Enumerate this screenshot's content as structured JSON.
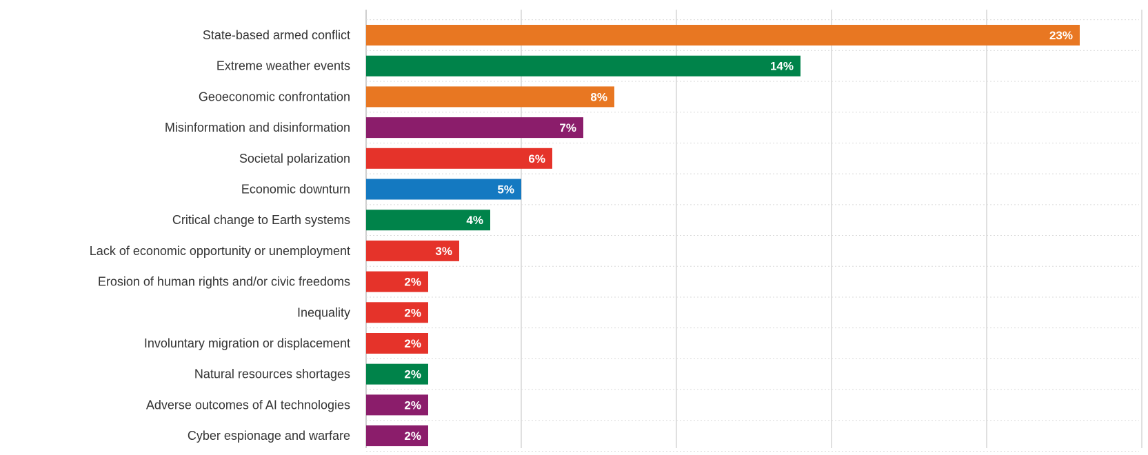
{
  "chart_data": {
    "type": "bar",
    "orientation": "horizontal",
    "categories": [
      "State-based armed conflict",
      "Extreme weather events",
      "Geoeconomic confrontation",
      "Misinformation and disinformation",
      "Societal polarization",
      "Economic downturn",
      "Critical change to Earth systems",
      "Lack of economic opportunity or unemployment",
      "Erosion of human rights and/or civic freedoms",
      "Inequality",
      "Involuntary migration or displacement",
      "Natural resources shortages",
      "Adverse outcomes of AI technologies",
      "Cyber espionage and warfare"
    ],
    "values": [
      23,
      14,
      8,
      7,
      6,
      5,
      4,
      3,
      2,
      2,
      2,
      2,
      2,
      2
    ],
    "value_labels": [
      "23%",
      "14%",
      "8%",
      "7%",
      "6%",
      "5%",
      "4%",
      "3%",
      "2%",
      "2%",
      "2%",
      "2%",
      "2%",
      "2%"
    ],
    "colors": [
      "#E87722",
      "#00834A",
      "#E87722",
      "#8B1D6B",
      "#E5332A",
      "#1479C1",
      "#00834A",
      "#E5332A",
      "#E5332A",
      "#E5332A",
      "#E5332A",
      "#00834A",
      "#8B1D6B",
      "#8B1D6B"
    ],
    "xlim": [
      0,
      25
    ],
    "grid": true,
    "title": "",
    "xlabel": "",
    "ylabel": ""
  }
}
